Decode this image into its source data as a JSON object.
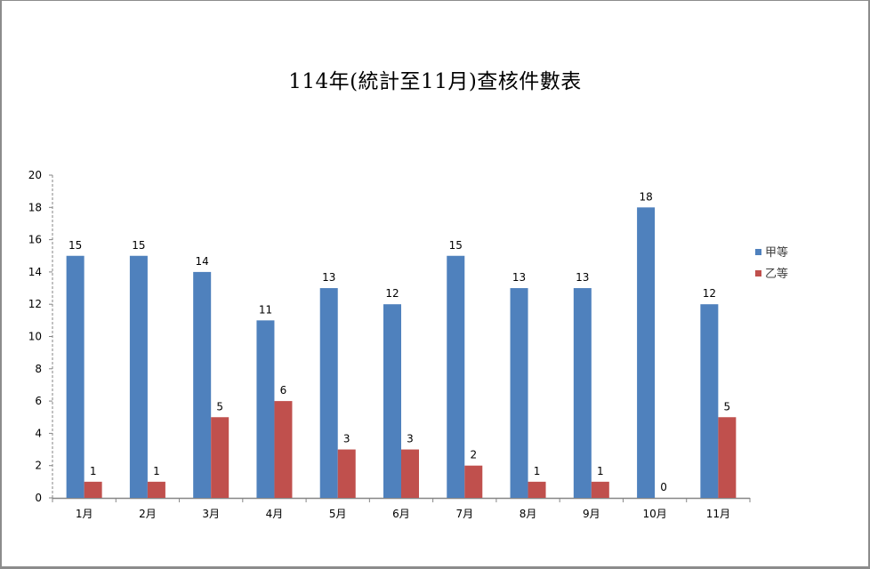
{
  "chart_data": {
    "type": "bar",
    "title": "114年(統計至11月)查核件數表",
    "xlabel": "",
    "ylabel": "",
    "categories": [
      "1月",
      "2月",
      "3月",
      "4月",
      "5月",
      "6月",
      "7月",
      "8月",
      "9月",
      "10月",
      "11月"
    ],
    "series": [
      {
        "name": "甲等",
        "color": "#4f81bd",
        "values": [
          15,
          15,
          14,
          11,
          13,
          12,
          15,
          13,
          13,
          18,
          12
        ]
      },
      {
        "name": "乙等",
        "color": "#c0504d",
        "values": [
          1,
          1,
          5,
          6,
          3,
          3,
          2,
          1,
          1,
          0,
          5
        ]
      }
    ],
    "ylim": [
      0,
      20
    ],
    "yticks": [
      0,
      2,
      4,
      6,
      8,
      10,
      12,
      14,
      16,
      18,
      20
    ],
    "grid": false,
    "data_labels": true,
    "legend_position": "right"
  }
}
